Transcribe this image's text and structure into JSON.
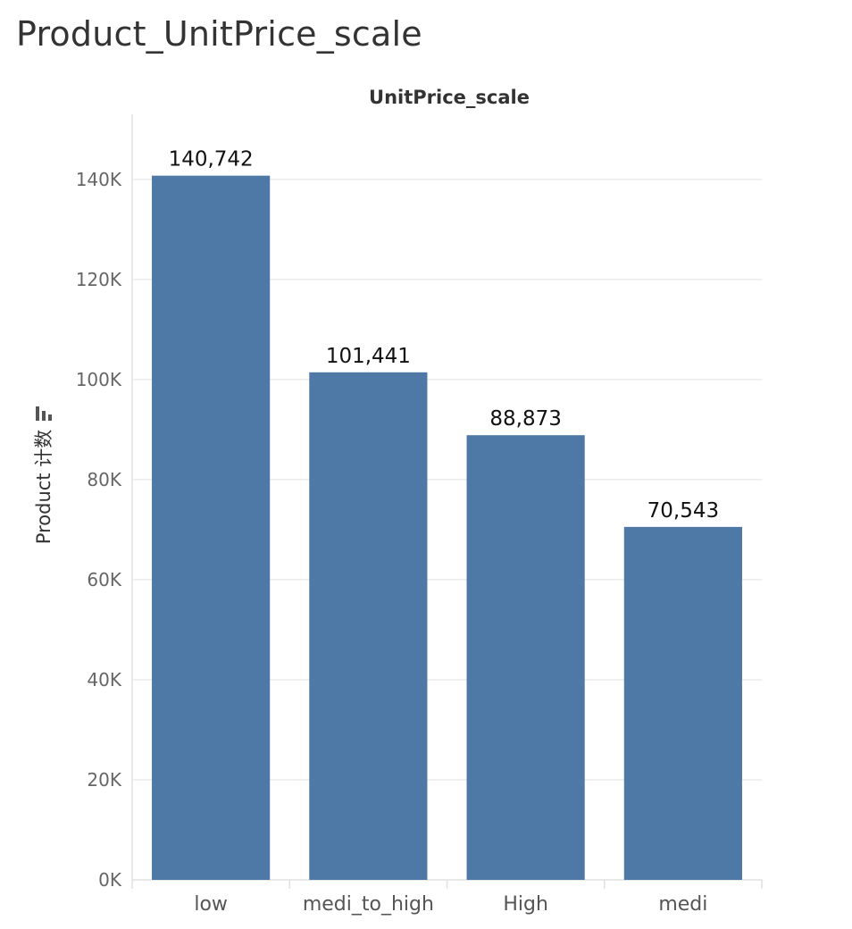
{
  "page": {
    "title": "Product_UnitPrice_scale"
  },
  "chart_data": {
    "type": "bar",
    "column_header": "UnitPrice_scale",
    "ylabel": "Product 计数",
    "xlabel": "",
    "categories": [
      "low",
      "medi_to_high",
      "High",
      "medi"
    ],
    "values": [
      140742,
      101441,
      88873,
      70543
    ],
    "value_labels": [
      "140,742",
      "101,441",
      "88,873",
      "70,543"
    ],
    "yticks": [
      0,
      20000,
      40000,
      60000,
      80000,
      100000,
      120000,
      140000
    ],
    "ytick_labels": [
      "0K",
      "20K",
      "40K",
      "60K",
      "80K",
      "100K",
      "120K",
      "140K"
    ],
    "ylim": [
      0,
      153000
    ],
    "grid": true,
    "bar_color": "#4e79a7",
    "icon": "bar-chart-icon"
  }
}
